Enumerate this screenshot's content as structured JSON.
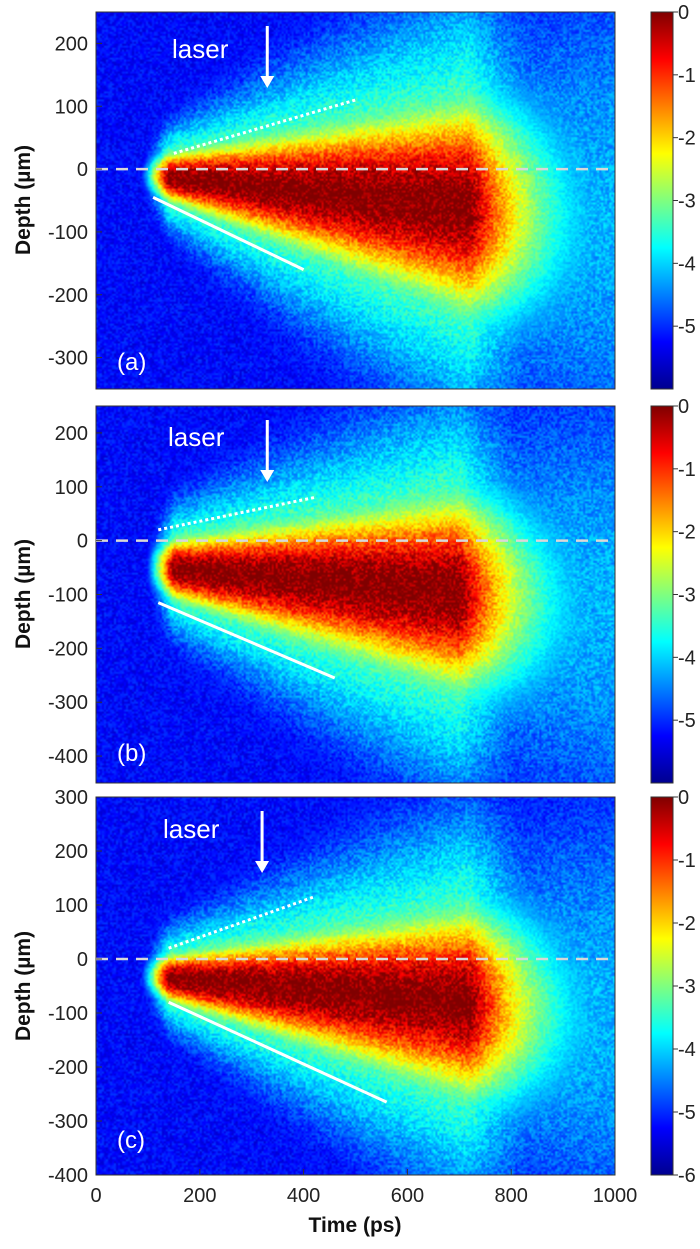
{
  "chart_data": [
    {
      "type": "heatmap",
      "panel": "(a)",
      "annotation": "laser",
      "xlabel": "",
      "ylabel": "Depth (µm)",
      "xlim": [
        0,
        1000
      ],
      "ylim": [
        -350,
        250
      ],
      "yticks": [
        200,
        100,
        0,
        -100,
        -200,
        -300
      ],
      "colorbar": {
        "min": -6,
        "max": 0,
        "ticks": [
          0,
          -1,
          -2,
          -3,
          -4,
          -5
        ]
      },
      "signal": {
        "core_depth": -55,
        "core_start": 100,
        "core_end": 720,
        "top_edge_start": 30,
        "bottom_edge_start": -50
      },
      "lines": [
        {
          "style": "dotted",
          "points": [
            [
              150,
              25
            ],
            [
              500,
              110
            ]
          ]
        },
        {
          "style": "solid",
          "points": [
            [
              110,
              -45
            ],
            [
              400,
              -160
            ]
          ]
        },
        {
          "style": "dashed",
          "points": [
            [
              0,
              0
            ],
            [
              1000,
              0
            ]
          ]
        }
      ],
      "laser_arrow_x": 330
    },
    {
      "type": "heatmap",
      "panel": "(b)",
      "annotation": "laser",
      "xlabel": "",
      "ylabel": "Depth (µm)",
      "xlim": [
        0,
        1000
      ],
      "ylim": [
        -450,
        250
      ],
      "yticks": [
        200,
        100,
        0,
        -100,
        -200,
        -300,
        -400
      ],
      "colorbar": {
        "min": -6,
        "max": 0,
        "ticks": [
          0,
          -1,
          -2,
          -3,
          -4,
          -5
        ]
      },
      "signal": {
        "core_depth": -90,
        "core_start": 110,
        "core_end": 700,
        "top_edge_start": 15,
        "bottom_edge_start": -115
      },
      "lines": [
        {
          "style": "dotted",
          "points": [
            [
              120,
              20
            ],
            [
              420,
              80
            ]
          ]
        },
        {
          "style": "solid",
          "points": [
            [
              120,
              -115
            ],
            [
              460,
              -255
            ]
          ]
        },
        {
          "style": "dashed",
          "points": [
            [
              0,
              0
            ],
            [
              1000,
              0
            ]
          ]
        }
      ],
      "laser_arrow_x": 330
    },
    {
      "type": "heatmap",
      "panel": "(c)",
      "annotation": "laser",
      "xlabel": "Time (ps)",
      "ylabel": "Depth (µm)",
      "xlim": [
        0,
        1000
      ],
      "ylim": [
        -400,
        300
      ],
      "xticks": [
        0,
        200,
        400,
        600,
        800,
        1000
      ],
      "yticks": [
        300,
        200,
        100,
        0,
        -100,
        -200,
        -300,
        -400
      ],
      "colorbar": {
        "min": -6,
        "max": 0,
        "ticks": [
          0,
          -1,
          -2,
          -3,
          -4,
          -5,
          -6
        ]
      },
      "signal": {
        "core_depth": -80,
        "core_start": 100,
        "core_end": 720,
        "top_edge_start": 15,
        "bottom_edge_start": -80
      },
      "lines": [
        {
          "style": "dotted",
          "points": [
            [
              140,
              20
            ],
            [
              420,
              115
            ]
          ]
        },
        {
          "style": "solid",
          "points": [
            [
              140,
              -80
            ],
            [
              560,
              -265
            ]
          ]
        },
        {
          "style": "dashed",
          "points": [
            [
              0,
              0
            ],
            [
              1000,
              0
            ]
          ]
        }
      ],
      "laser_arrow_x": 320
    }
  ]
}
